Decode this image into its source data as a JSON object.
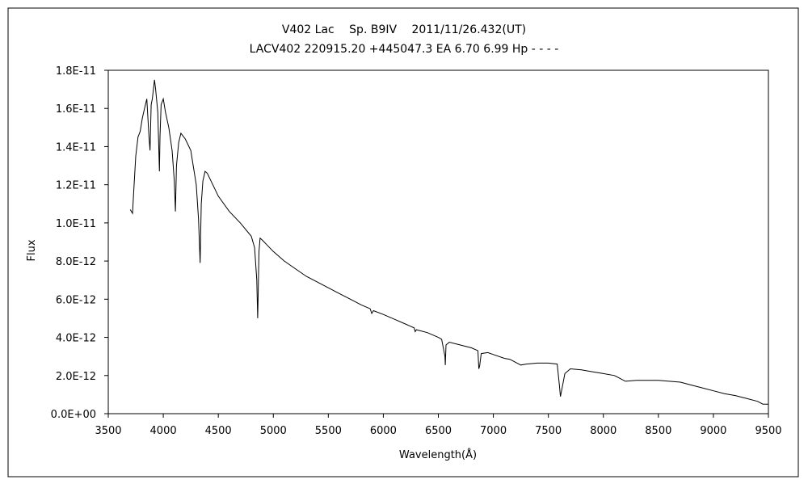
{
  "chart_data": {
    "type": "line",
    "title": "V402 Lac　 Sp. B9IV　 2011/11/26.432(UT)",
    "subtitle": "LACV402 220915.20 +445047.3 EA 6.70 6.99 Hp - - - -",
    "xlabel": "Wavelength(Å)",
    "ylabel": "Flux",
    "xlim": [
      3500,
      9500
    ],
    "ylim": [
      0,
      1.8e-11
    ],
    "grid": false,
    "legend": "none",
    "line_color": "#000000",
    "x_ticks": [
      3500,
      4000,
      4500,
      5000,
      5500,
      6000,
      6500,
      7000,
      7500,
      8000,
      8500,
      9000,
      9500
    ],
    "x_tick_labels": [
      "3500",
      "4000",
      "4500",
      "5000",
      "5500",
      "6000",
      "6500",
      "7000",
      "7500",
      "8000",
      "8500",
      "9000",
      "9500"
    ],
    "y_ticks": [
      0,
      2e-12,
      4e-12,
      6e-12,
      8e-12,
      1e-11,
      1.2e-11,
      1.4e-11,
      1.6e-11,
      1.8e-11
    ],
    "y_tick_labels": [
      "0.0E+00",
      "2.0E-12",
      "4.0E-12",
      "6.0E-12",
      "8.0E-12",
      "1.0E-11",
      "1.2E-11",
      "1.4E-11",
      "1.6E-11",
      "1.8E-11"
    ],
    "series": [
      {
        "x": [
          3700,
          3720,
          3730,
          3750,
          3770,
          3790,
          3810,
          3830,
          3850,
          3870,
          3880,
          3890,
          3900,
          3920,
          3930,
          3950,
          3965,
          3970,
          3980,
          4000,
          4020,
          4050,
          4080,
          4100,
          4110,
          4120,
          4140,
          4160,
          4200,
          4250,
          4300,
          4320,
          4335,
          4340,
          4345,
          4360,
          4380,
          4400,
          4450,
          4500,
          4600,
          4700,
          4800,
          4830,
          4850,
          4858,
          4862,
          4870,
          4880,
          4900,
          4950,
          5000,
          5100,
          5200,
          5300,
          5400,
          5500,
          5600,
          5700,
          5800,
          5880,
          5895,
          5910,
          6000,
          6100,
          6200,
          6280,
          6290,
          6300,
          6400,
          6500,
          6530,
          6560,
          6563,
          6570,
          6600,
          6700,
          6800,
          6860,
          6868,
          6875,
          6890,
          6950,
          7000,
          7100,
          7150,
          7200,
          7250,
          7300,
          7400,
          7500,
          7580,
          7600,
          7610,
          7620,
          7650,
          7700,
          7800,
          7900,
          8000,
          8100,
          8150,
          8200,
          8300,
          8400,
          8500,
          8600,
          8700,
          8800,
          8900,
          9000,
          9100,
          9200,
          9300,
          9400,
          9450,
          9500
        ],
        "y": [
          1.07e-11,
          1.05e-11,
          1.15e-11,
          1.35e-11,
          1.45e-11,
          1.48e-11,
          1.55e-11,
          1.6e-11,
          1.65e-11,
          1.45e-11,
          1.38e-11,
          1.62e-11,
          1.65e-11,
          1.75e-11,
          1.7e-11,
          1.58e-11,
          1.27e-11,
          1.45e-11,
          1.62e-11,
          1.65e-11,
          1.58e-11,
          1.5e-11,
          1.38e-11,
          1.22e-11,
          1.06e-11,
          1.3e-11,
          1.42e-11,
          1.47e-11,
          1.44e-11,
          1.38e-11,
          1.2e-11,
          1.02e-11,
          7.9e-12,
          9.5e-12,
          1.1e-11,
          1.22e-11,
          1.27e-11,
          1.26e-11,
          1.2e-11,
          1.14e-11,
          1.06e-11,
          1e-11,
          9.3e-12,
          8.7e-12,
          7e-12,
          5e-12,
          6.2e-12,
          8.5e-12,
          9.2e-12,
          9.1e-12,
          8.8e-12,
          8.5e-12,
          8e-12,
          7.6e-12,
          7.2e-12,
          6.9e-12,
          6.6e-12,
          6.3e-12,
          6e-12,
          5.7e-12,
          5.5e-12,
          5.25e-12,
          5.4e-12,
          5.2e-12,
          4.95e-12,
          4.7e-12,
          4.5e-12,
          4.3e-12,
          4.4e-12,
          4.25e-12,
          4e-12,
          3.9e-12,
          3e-12,
          2.55e-12,
          3.6e-12,
          3.75e-12,
          3.6e-12,
          3.45e-12,
          3.3e-12,
          2.35e-12,
          2.5e-12,
          3.15e-12,
          3.2e-12,
          3.1e-12,
          2.9e-12,
          2.85e-12,
          2.7e-12,
          2.55e-12,
          2.6e-12,
          2.65e-12,
          2.65e-12,
          2.6e-12,
          1.5e-12,
          9e-13,
          1.2e-12,
          2.1e-12,
          2.35e-12,
          2.3e-12,
          2.2e-12,
          2.1e-12,
          2e-12,
          1.85e-12,
          1.7e-12,
          1.75e-12,
          1.75e-12,
          1.75e-12,
          1.7e-12,
          1.65e-12,
          1.5e-12,
          1.35e-12,
          1.2e-12,
          1.05e-12,
          9.5e-13,
          8e-13,
          6.5e-13,
          5e-13,
          5e-13
        ]
      }
    ]
  }
}
